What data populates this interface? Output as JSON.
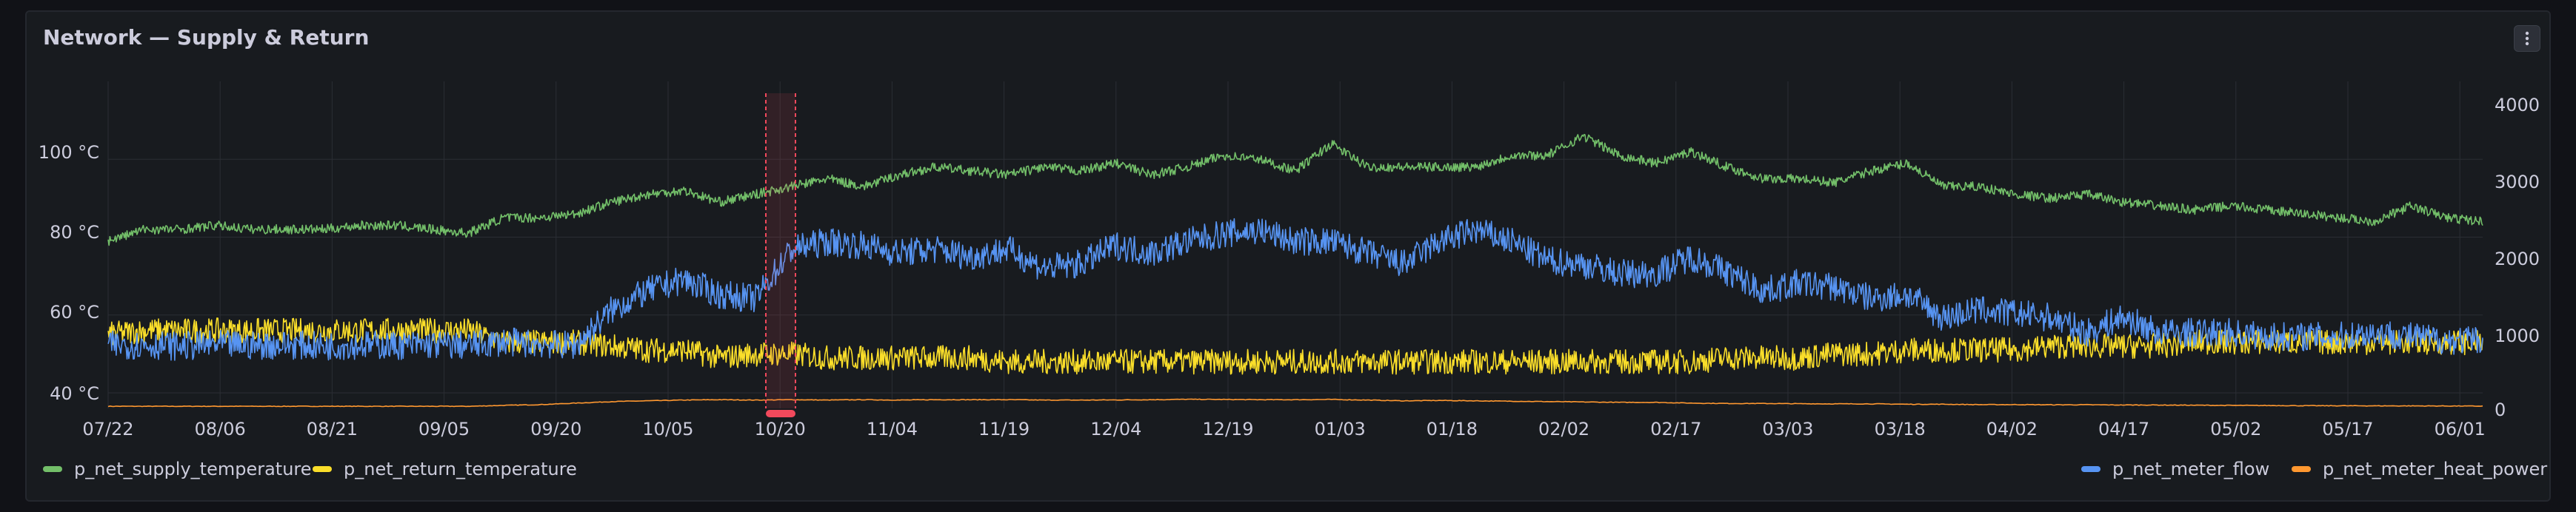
{
  "panel": {
    "title": "Network — Supply & Return"
  },
  "chart_data": {
    "type": "line",
    "title": "Network — Supply & Return",
    "x_ticks": [
      "07/22",
      "08/06",
      "08/21",
      "09/05",
      "09/20",
      "10/05",
      "10/20",
      "11/04",
      "11/19",
      "12/04",
      "12/19",
      "01/03",
      "01/18",
      "02/02",
      "02/17",
      "03/03",
      "03/18",
      "04/02",
      "04/17",
      "05/02",
      "05/17",
      "06/01"
    ],
    "y_left": {
      "unit": "°C",
      "ticks": [
        "40 °C",
        "60 °C",
        "80 °C",
        "100 °C"
      ],
      "range": [
        36,
        120
      ]
    },
    "y_right": {
      "ticks": [
        "0",
        "1000",
        "2000",
        "3000",
        "4000"
      ],
      "range": [
        0,
        4000
      ]
    },
    "grid": true,
    "legend_placement": "bottom",
    "annotation": {
      "type": "time-region",
      "start": "10/18",
      "end": "10/22",
      "color": "#f2495c"
    },
    "series": [
      {
        "name": "p_net_supply_temperature",
        "axis": "left",
        "color": "#73bf69",
        "values": [
          79,
          82,
          82,
          83,
          82,
          82,
          82,
          83,
          83,
          82,
          81,
          85,
          85,
          86,
          89,
          91,
          92,
          89,
          91,
          93,
          95,
          93,
          96,
          98,
          97,
          96,
          98,
          97,
          99,
          96,
          98,
          101,
          100,
          97,
          104,
          98,
          98,
          98,
          98,
          101,
          101,
          106,
          101,
          99,
          102,
          98,
          95,
          95,
          94,
          97,
          99,
          93,
          93,
          91,
          90,
          91,
          89,
          88,
          87,
          88,
          87,
          86,
          85,
          84,
          88,
          85,
          84
        ]
      },
      {
        "name": "p_net_return_temperature",
        "axis": "left",
        "color": "#fade2a",
        "values": [
          55,
          56,
          56,
          56,
          56,
          56,
          56,
          56,
          56,
          56,
          56,
          53,
          53,
          53,
          52,
          51,
          51,
          49,
          50,
          50,
          49,
          49,
          49,
          49,
          49,
          48,
          48,
          48,
          48,
          48,
          48,
          48,
          48,
          48,
          48,
          48,
          48,
          48,
          48,
          48,
          48,
          48,
          48,
          48,
          48,
          49,
          49,
          49,
          50,
          50,
          51,
          51,
          51,
          51,
          52,
          52,
          52,
          52,
          53,
          53,
          53,
          53,
          53,
          53,
          53,
          53,
          53
        ]
      },
      {
        "name": "p_net_meter_flow",
        "axis": "right",
        "color": "#5794f2",
        "values": [
          830,
          840,
          820,
          840,
          830,
          840,
          820,
          840,
          830,
          840,
          830,
          880,
          850,
          830,
          1300,
          1550,
          1700,
          1500,
          1450,
          2100,
          2200,
          2150,
          2050,
          2100,
          2000,
          2100,
          1850,
          1900,
          2150,
          2050,
          2200,
          2300,
          2350,
          2200,
          2200,
          2050,
          1900,
          2200,
          2350,
          2200,
          1950,
          1900,
          1780,
          1780,
          2000,
          1800,
          1550,
          1650,
          1600,
          1450,
          1500,
          1200,
          1300,
          1250,
          1200,
          1000,
          1200,
          1000,
          1000,
          1000,
          950,
          950,
          950,
          1000,
          950,
          900,
          900
        ]
      },
      {
        "name": "p_net_meter_heat_power",
        "axis": "right",
        "color": "#ff9830",
        "values": [
          28,
          28,
          28,
          28,
          28,
          28,
          28,
          28,
          28,
          28,
          28,
          40,
          50,
          70,
          90,
          100,
          110,
          115,
          110,
          115,
          110,
          115,
          110,
          115,
          115,
          115,
          110,
          110,
          112,
          115,
          120,
          118,
          115,
          115,
          118,
          110,
          100,
          105,
          100,
          95,
          90,
          85,
          80,
          80,
          70,
          65,
          65,
          62,
          60,
          60,
          55,
          55,
          50,
          50,
          48,
          48,
          45,
          45,
          42,
          40,
          38,
          36,
          35,
          34,
          33,
          32,
          30
        ]
      }
    ]
  },
  "legend": {
    "supply": "p_net_supply_temperature",
    "return": "p_net_return_temperature",
    "flow": "p_net_meter_flow",
    "power": "p_net_meter_heat_power"
  },
  "colors": {
    "supply": "#73bf69",
    "return": "#fade2a",
    "flow": "#5794f2",
    "power": "#ff9830",
    "region": "#f2495c",
    "grid": "#2b2e34"
  }
}
